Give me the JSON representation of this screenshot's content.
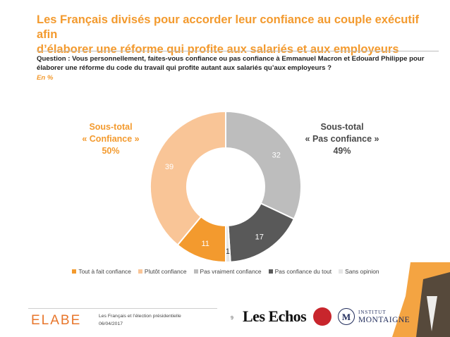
{
  "header": {
    "title_line1": "Les Français divisés pour accorder leur confiance au couple exécutif afin",
    "title_line2": "d’élaborer une réforme qui profite aux salariés et aux employeurs",
    "question_line1": "Question : Vous personnellement, faites-vous confiance ou pas confiance à Emmanuel Macron et Edouard Philippe pour",
    "question_line2": "élaborer une réforme du code du travail qui profite autant aux salariés qu’aux employeurs ?",
    "unit": "En %"
  },
  "subtotals": {
    "left": {
      "line1": "Sous-total",
      "line2": "« Confiance »",
      "line3": "50%"
    },
    "right": {
      "line1": "Sous-total",
      "line2": "« Pas confiance »",
      "line3": "49%"
    }
  },
  "chart_data": {
    "type": "pie",
    "style": "donut",
    "categories": [
      "Tout à fait confiance",
      "Plutôt confiance",
      "Pas vraiment confiance",
      "Pas confiance du tout",
      "Sans opinion"
    ],
    "values": [
      11,
      39,
      32,
      17,
      1
    ],
    "labels": [
      "11",
      "39",
      "32",
      "17",
      "1"
    ],
    "colors": [
      "#f39a2e",
      "#f9c597",
      "#bdbdbd",
      "#595959",
      "#e6e6e6"
    ],
    "legend_position": "bottom"
  },
  "footer": {
    "brand": "ELABE",
    "source_line1": "Les Français et l’élection présidentielle",
    "source_line2": "06/04/2017",
    "page_number": "9",
    "partner1": "Les Echos",
    "partner2_line1": "INSTITUT",
    "partner2_line2": "MONTAIGNE",
    "partner2_initial": "M"
  },
  "colors": {
    "accent": "#f39a2e",
    "dark_text": "#222222",
    "montaigne_blue": "#1e2a5a",
    "echos_red": "#c8252c"
  }
}
